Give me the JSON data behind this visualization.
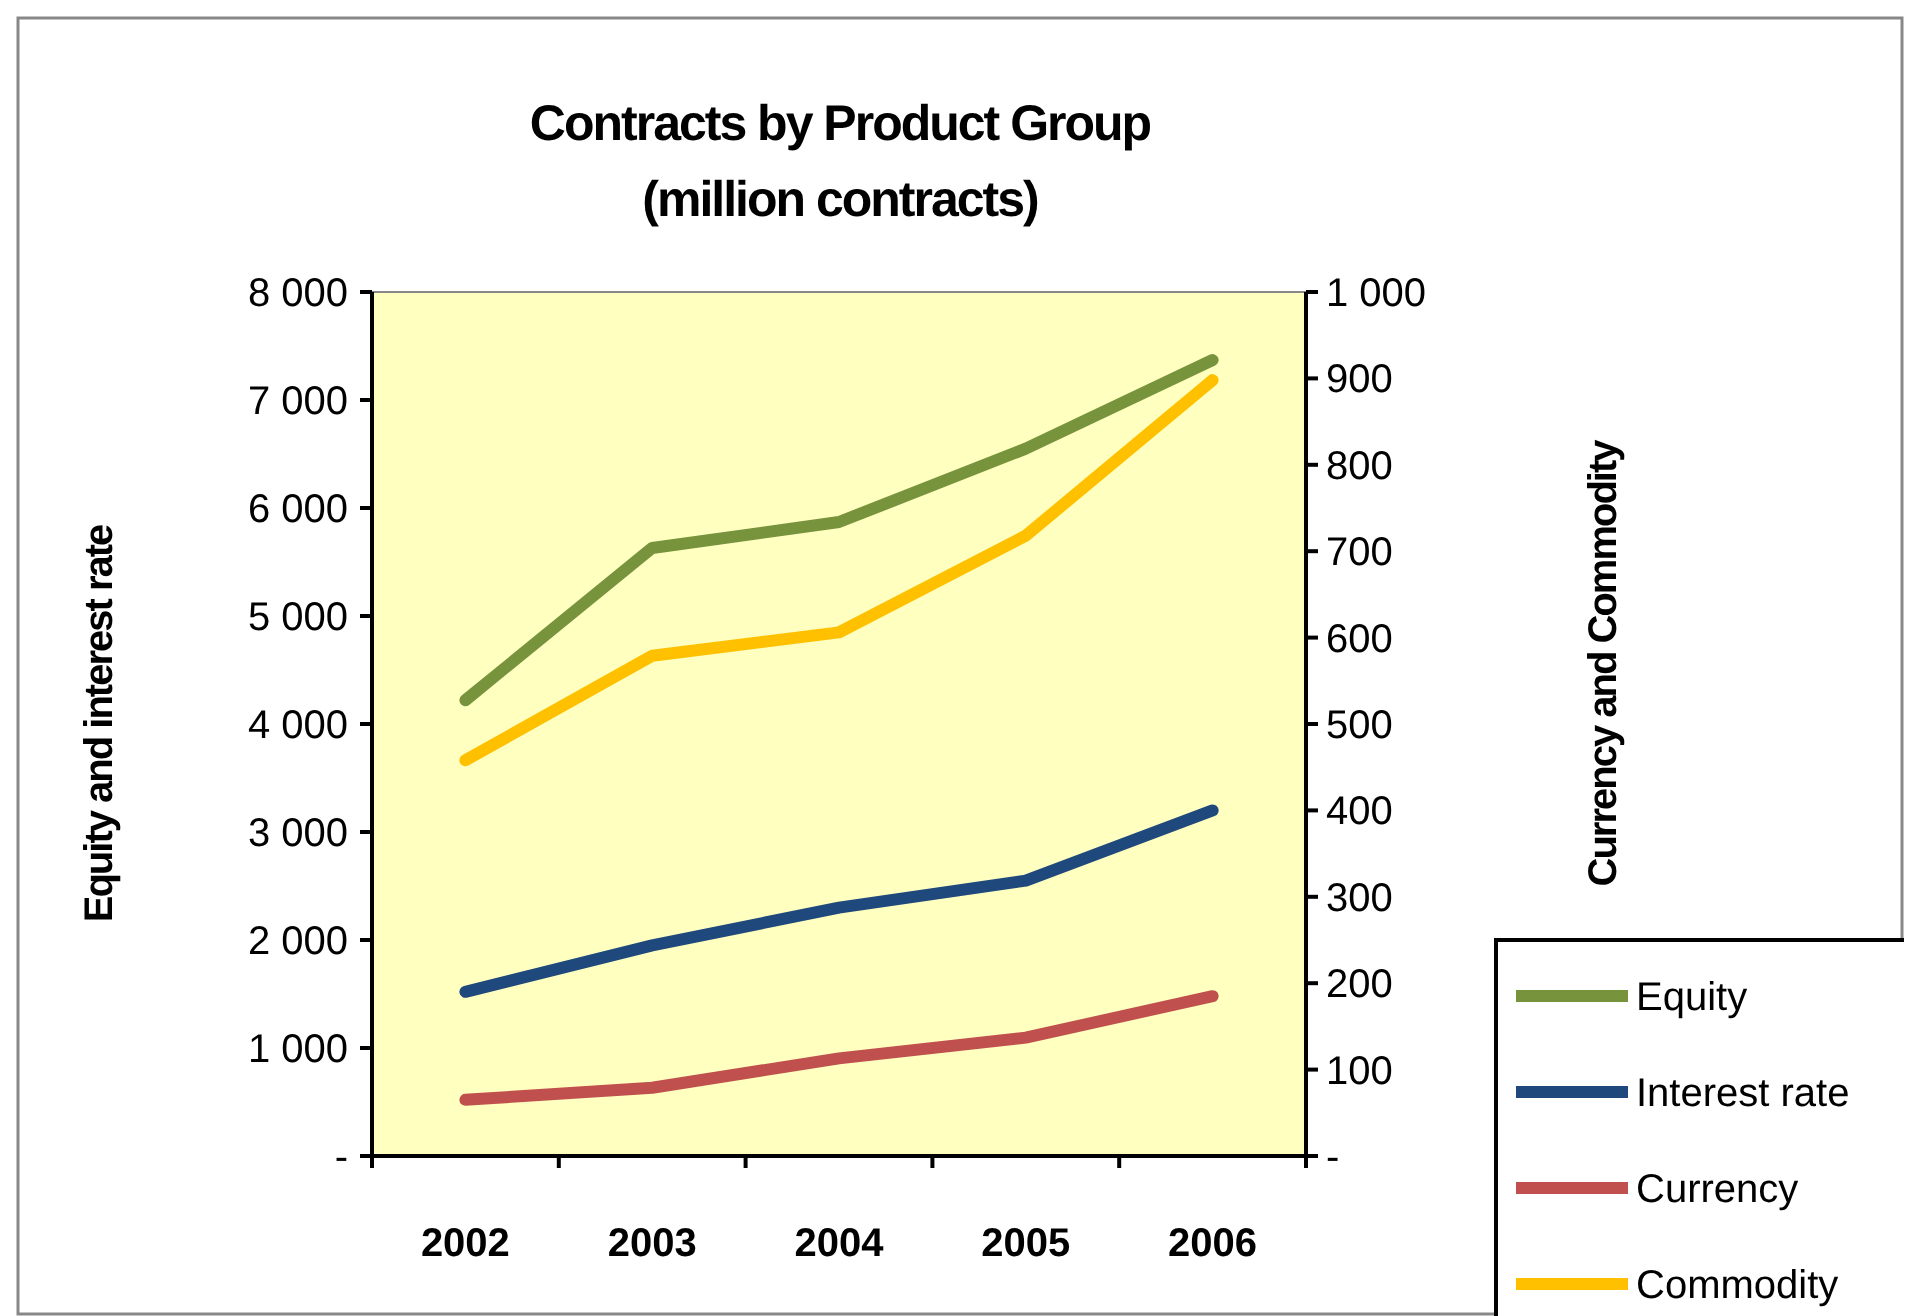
{
  "chart_data": {
    "type": "line",
    "title": "Contracts by Product Group",
    "subtitle": "(million contracts)",
    "ylabel": "Equity and interest rate",
    "y2label": "Currency and Commodity",
    "categories": [
      "2002",
      "2003",
      "2004",
      "2005",
      "2006"
    ],
    "series": [
      {
        "name": "Equity",
        "color": "#77933c",
        "values": [
          4220,
          5630,
          5870,
          6550,
          7370
        ]
      },
      {
        "name": "Interest rate",
        "color": "#1f497d",
        "values": [
          1520,
          1950,
          2300,
          2550,
          3200
        ]
      },
      {
        "name": "Currency",
        "color": "#c0504d",
        "axis": "y2",
        "values": [
          65,
          79,
          113,
          137,
          185
        ]
      },
      {
        "name": "Commodity",
        "color": "#ffc000",
        "axis": "y2",
        "values": [
          458,
          579,
          606,
          718,
          898
        ]
      }
    ],
    "ylim": [
      0,
      8000
    ],
    "yticks": [
      {
        "value": 0,
        "label": "-"
      },
      {
        "value": 1000,
        "label": "1 000"
      },
      {
        "value": 2000,
        "label": "2 000"
      },
      {
        "value": 3000,
        "label": "3 000"
      },
      {
        "value": 4000,
        "label": "4 000"
      },
      {
        "value": 5000,
        "label": "5 000"
      },
      {
        "value": 6000,
        "label": "6 000"
      },
      {
        "value": 7000,
        "label": "7 000"
      },
      {
        "value": 8000,
        "label": "8 000"
      }
    ],
    "y2lim": [
      0,
      1000
    ],
    "y2ticks": [
      {
        "value": 0,
        "label": "-"
      },
      100,
      200,
      300,
      400,
      500,
      600,
      700,
      800,
      900,
      {
        "value": 1000,
        "label": "1 000"
      }
    ],
    "grid": false,
    "legend": "bottom right",
    "marker": "none",
    "line_style": "solid"
  }
}
